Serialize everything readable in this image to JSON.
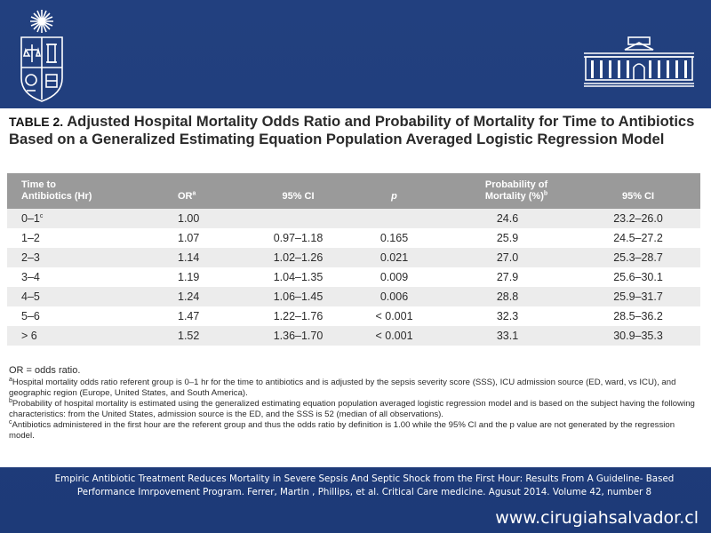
{
  "table": {
    "label": "TABLE 2.",
    "title": "Adjusted Hospital Mortality Odds Ratio and Probability of Mortality for Time to Antibiotics Based on a Generalized Estimating Equation Population Averaged Logistic Regression Model",
    "columns": {
      "time_line1": "Time to",
      "time_line2": "Antibiotics (Hr)",
      "or": "OR",
      "or_sup": "a",
      "ci": "95% CI",
      "p": "p",
      "prob_line1": "Probability of",
      "prob_line2": "Mortality (%)",
      "prob_sup": "b",
      "ci2": "95% CI"
    },
    "rows": [
      {
        "time": "0–1",
        "time_sup": "c",
        "or": "1.00",
        "ci": "",
        "p": "",
        "prob": "24.6",
        "ci2": "23.2–26.0"
      },
      {
        "time": "1–2",
        "time_sup": "",
        "or": "1.07",
        "ci": "0.97–1.18",
        "p": "0.165",
        "prob": "25.9",
        "ci2": "24.5–27.2"
      },
      {
        "time": "2–3",
        "time_sup": "",
        "or": "1.14",
        "ci": "1.02–1.26",
        "p": "0.021",
        "prob": "27.0",
        "ci2": "25.3–28.7"
      },
      {
        "time": "3–4",
        "time_sup": "",
        "or": "1.19",
        "ci": "1.04–1.35",
        "p": "0.009",
        "prob": "27.9",
        "ci2": "25.6–30.1"
      },
      {
        "time": "4–5",
        "time_sup": "",
        "or": "1.24",
        "ci": "1.06–1.45",
        "p": "0.006",
        "prob": "28.8",
        "ci2": "25.9–31.7"
      },
      {
        "time": "5–6",
        "time_sup": "",
        "or": "1.47",
        "ci": "1.22–1.76",
        "p": "< 0.001",
        "prob": "32.3",
        "ci2": "28.5–36.2"
      },
      {
        "time": "> 6",
        "time_sup": "",
        "or": "1.52",
        "ci": "1.36–1.70",
        "p": "< 0.001",
        "prob": "33.1",
        "ci2": "30.9–35.3"
      }
    ],
    "footnotes": {
      "or_def": "OR = odds ratio.",
      "a_mark": "a",
      "a": "Hospital mortality odds ratio referent group is 0–1 hr for the time to antibiotics and is adjusted by the sepsis severity score (SSS), ICU admission source (ED, ward, vs ICU), and geographic region (Europe, United States, and South America).",
      "b_mark": "b",
      "b": "Probability of hospital mortality is estimated using the generalized estimating equation population averaged logistic regression model and is based on the subject having the following characteristics: from the United States, admission source is the ED, and the SSS is 52 (median of all observations).",
      "c_mark": "c",
      "c": "Antibiotics administered in the first hour are the referent group and thus the odds ratio by definition is 1.00 while the 95% CI and the p value are not generated by the regression model."
    }
  },
  "citation": {
    "line1": "Empiric Antibiotic Treatment Reduces Mortality in Severe Sepsis And Septic Shock from the First Hour: Results From A Guideline- Based",
    "line2": "Performance Imrpovement Program. Ferrer, Martin , Phillips, et al. Critical Care medicine. Agusut 2014. Volume 42, number 8"
  },
  "website": "www.cirugiahsalvador.cl",
  "logos": {
    "left": "university-crest-icon",
    "right": "hospital-building-icon"
  },
  "colors": {
    "background": "#1f3d7a",
    "table_header": "#9a9a9a",
    "row_alt": "#ececec",
    "paper": "#ffffff"
  }
}
